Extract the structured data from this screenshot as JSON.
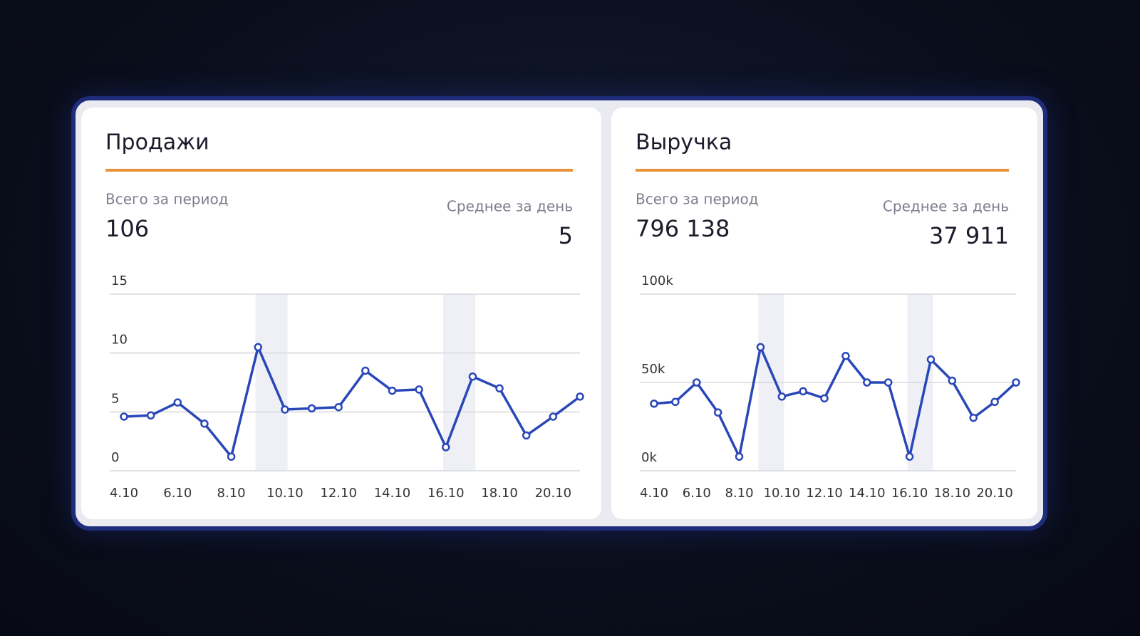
{
  "chart_data": [
    {
      "type": "line",
      "title": "Продажи",
      "summary": [
        {
          "label": "Всего за период",
          "value": 106
        },
        {
          "label": "Среднее за день",
          "value": 5
        }
      ],
      "categories": [
        "4.10",
        null,
        "6.10",
        null,
        "8.10",
        null,
        "10.10",
        null,
        "12.10",
        null,
        "14.10",
        null,
        "16.10",
        null,
        "18.10",
        null,
        "20.10",
        null
      ],
      "values": [
        4.6,
        4.7,
        5.8,
        4,
        1.2,
        10.5,
        5.2,
        5.3,
        5.4,
        8.5,
        6.8,
        6.9,
        2,
        8,
        7,
        3,
        4.6,
        6.3
      ],
      "color": "#2a47b8",
      "ylim": [
        0,
        15
      ],
      "yticks": [
        0,
        5,
        10,
        15
      ],
      "grid": true
    },
    {
      "type": "line",
      "title": "Выручка",
      "summary": [
        {
          "label": "Всего за период",
          "value": 796138,
          "value_label": "796 138"
        },
        {
          "label": "Среднее за день",
          "value": 37911,
          "value_label": "37 911"
        }
      ],
      "categories": [
        "4.10",
        null,
        "6.10",
        null,
        "8.10",
        null,
        "10.10",
        null,
        "12.10",
        null,
        "14.10",
        null,
        "16.10",
        null,
        "18.10",
        null,
        "20.10",
        null
      ],
      "values": [
        38000,
        39000,
        50000,
        33000,
        8000,
        70000,
        42000,
        45000,
        41000,
        65000,
        50000,
        50000,
        8000,
        63000,
        51000,
        30000,
        39000,
        50000
      ],
      "color": "#2a47b8",
      "ylim": [
        0,
        100000
      ],
      "yticks": [
        {
          "value": 0,
          "label": "0k"
        },
        {
          "value": 50000,
          "label": "50k"
        },
        {
          "value": 100000,
          "label": "100k"
        }
      ],
      "grid": true
    }
  ]
}
